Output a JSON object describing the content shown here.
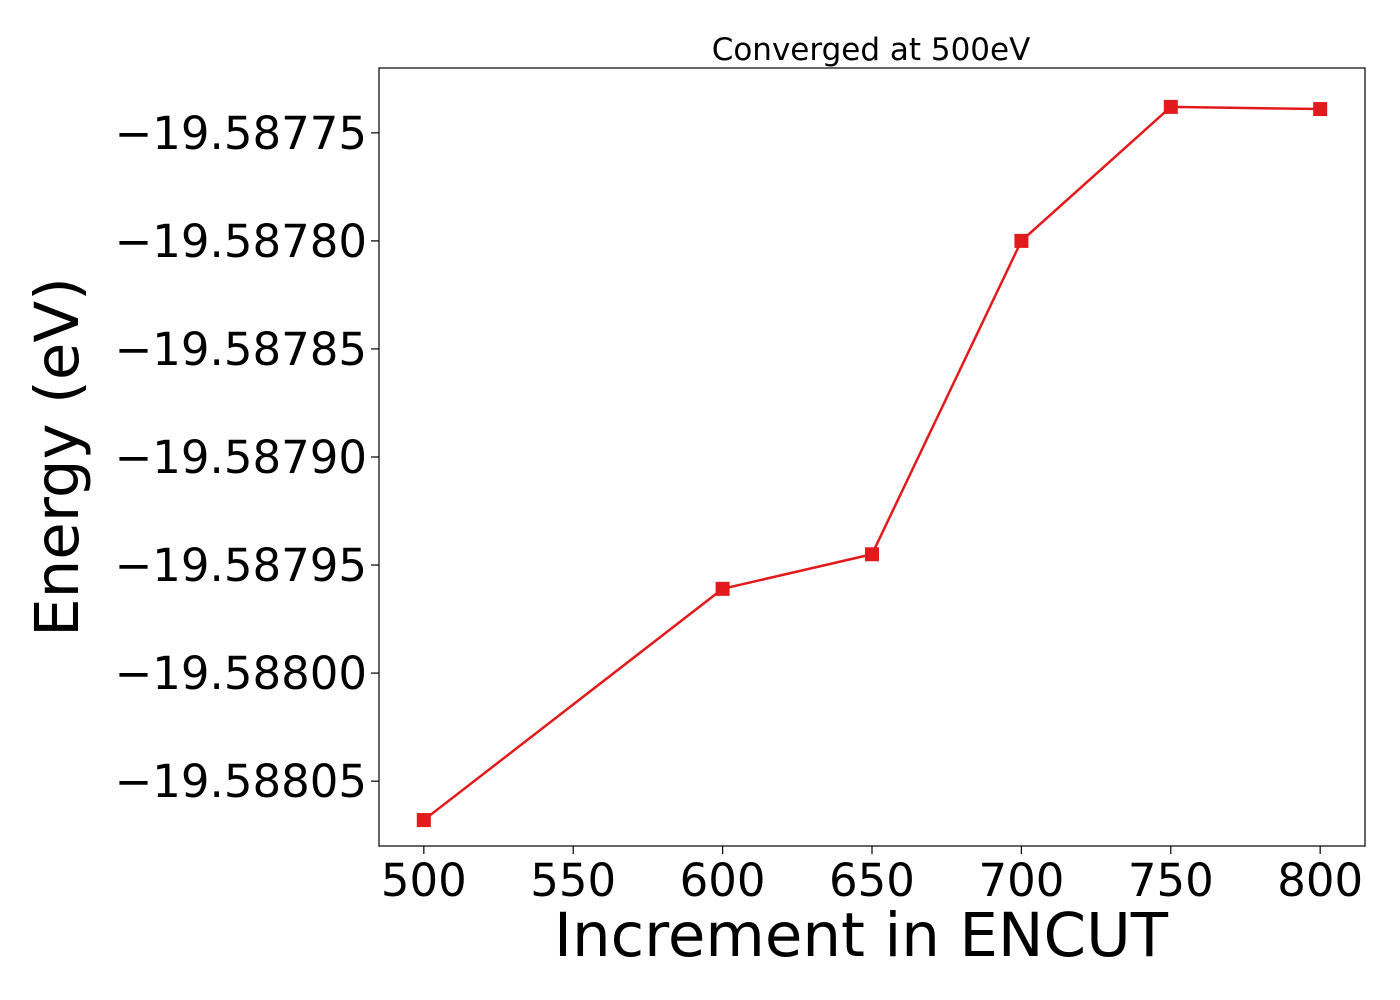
{
  "chart_data": {
    "type": "line",
    "title": "Converged at 500eV",
    "xlabel": "Increment in ENCUT",
    "ylabel": "Energy (eV)",
    "xlim": [
      485,
      815
    ],
    "ylim": [
      -19.58808,
      -19.58772
    ],
    "x_ticks": [
      500,
      550,
      600,
      650,
      700,
      750,
      800
    ],
    "x_tick_labels": [
      "500",
      "550",
      "600",
      "650",
      "700",
      "750",
      "800"
    ],
    "y_ticks": [
      -19.58775,
      -19.5878,
      -19.58785,
      -19.5879,
      -19.58795,
      -19.588,
      -19.58805
    ],
    "y_tick_labels": [
      "−19.58775",
      "−19.58780",
      "−19.58785",
      "−19.58790",
      "−19.58795",
      "−19.58800",
      "−19.58805"
    ],
    "grid": false,
    "series": [
      {
        "color": "#e31a1c",
        "marker": "square",
        "x": [
          500,
          600,
          650,
          700,
          750,
          800
        ],
        "y": [
          -19.588068,
          -19.587961,
          -19.587945,
          -19.5878,
          -19.587738,
          -19.587739
        ]
      }
    ]
  }
}
